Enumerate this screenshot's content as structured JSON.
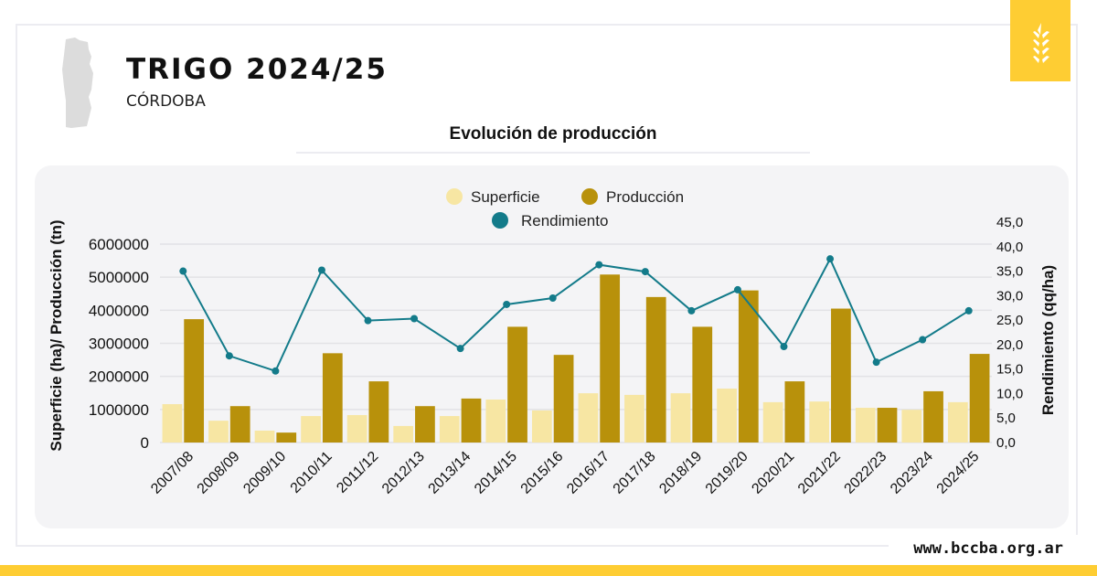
{
  "header": {
    "title": "TRIGO 2024/25",
    "region": "CÓRDOBA",
    "website": "www.bccba.org.ar"
  },
  "colors": {
    "superficie": "#f7e6a3",
    "produccion": "#b8910b",
    "rendimiento": "#137b8a",
    "accent": "#fecd33"
  },
  "chart_data": {
    "type": "bar",
    "title": "Evolución de producción",
    "ylabel": "Superficie (ha)/ Producción (tn)",
    "y2label": "Rendimiento (qq/ha)",
    "ylim": [
      0,
      6000000
    ],
    "y2lim": [
      0,
      45
    ],
    "yticks": [
      "0",
      "1000000",
      "2000000",
      "3000000",
      "4000000",
      "5000000",
      "6000000"
    ],
    "y2ticks": [
      "0,0",
      "5,0",
      "10,0",
      "15,0",
      "20,0",
      "25,0",
      "30,0",
      "35,0",
      "40,0",
      "45,0"
    ],
    "legend": [
      "Superficie",
      "Producción",
      "Rendimiento"
    ],
    "legend_position": "top-center",
    "categories": [
      "2007/08",
      "2008/09",
      "2009/10",
      "2010/11",
      "2011/12",
      "2012/13",
      "2013/14",
      "2014/15",
      "2015/16",
      "2016/17",
      "2017/18",
      "2018/19",
      "2019/20",
      "2020/21",
      "2021/22",
      "2022/23",
      "2023/24",
      "2024/25"
    ],
    "series": [
      {
        "name": "Superficie",
        "type": "bar",
        "axis": "left",
        "values": [
          1160000,
          660000,
          360000,
          800000,
          830000,
          500000,
          800000,
          1300000,
          970000,
          1490000,
          1440000,
          1490000,
          1630000,
          1220000,
          1240000,
          1050000,
          990000,
          1220000
        ]
      },
      {
        "name": "Producción",
        "type": "bar",
        "axis": "left",
        "values": [
          3730000,
          1100000,
          300000,
          2700000,
          1850000,
          1100000,
          1330000,
          3500000,
          2650000,
          5080000,
          4400000,
          3500000,
          4600000,
          1850000,
          4050000,
          1050000,
          1550000,
          2680000
        ]
      },
      {
        "name": "Rendimiento",
        "type": "line",
        "axis": "right",
        "values": [
          35.0,
          17.7,
          14.6,
          35.2,
          24.9,
          25.3,
          19.2,
          28.2,
          29.5,
          36.3,
          34.9,
          26.9,
          31.2,
          19.6,
          37.5,
          16.4,
          21.0,
          26.9
        ]
      }
    ]
  }
}
